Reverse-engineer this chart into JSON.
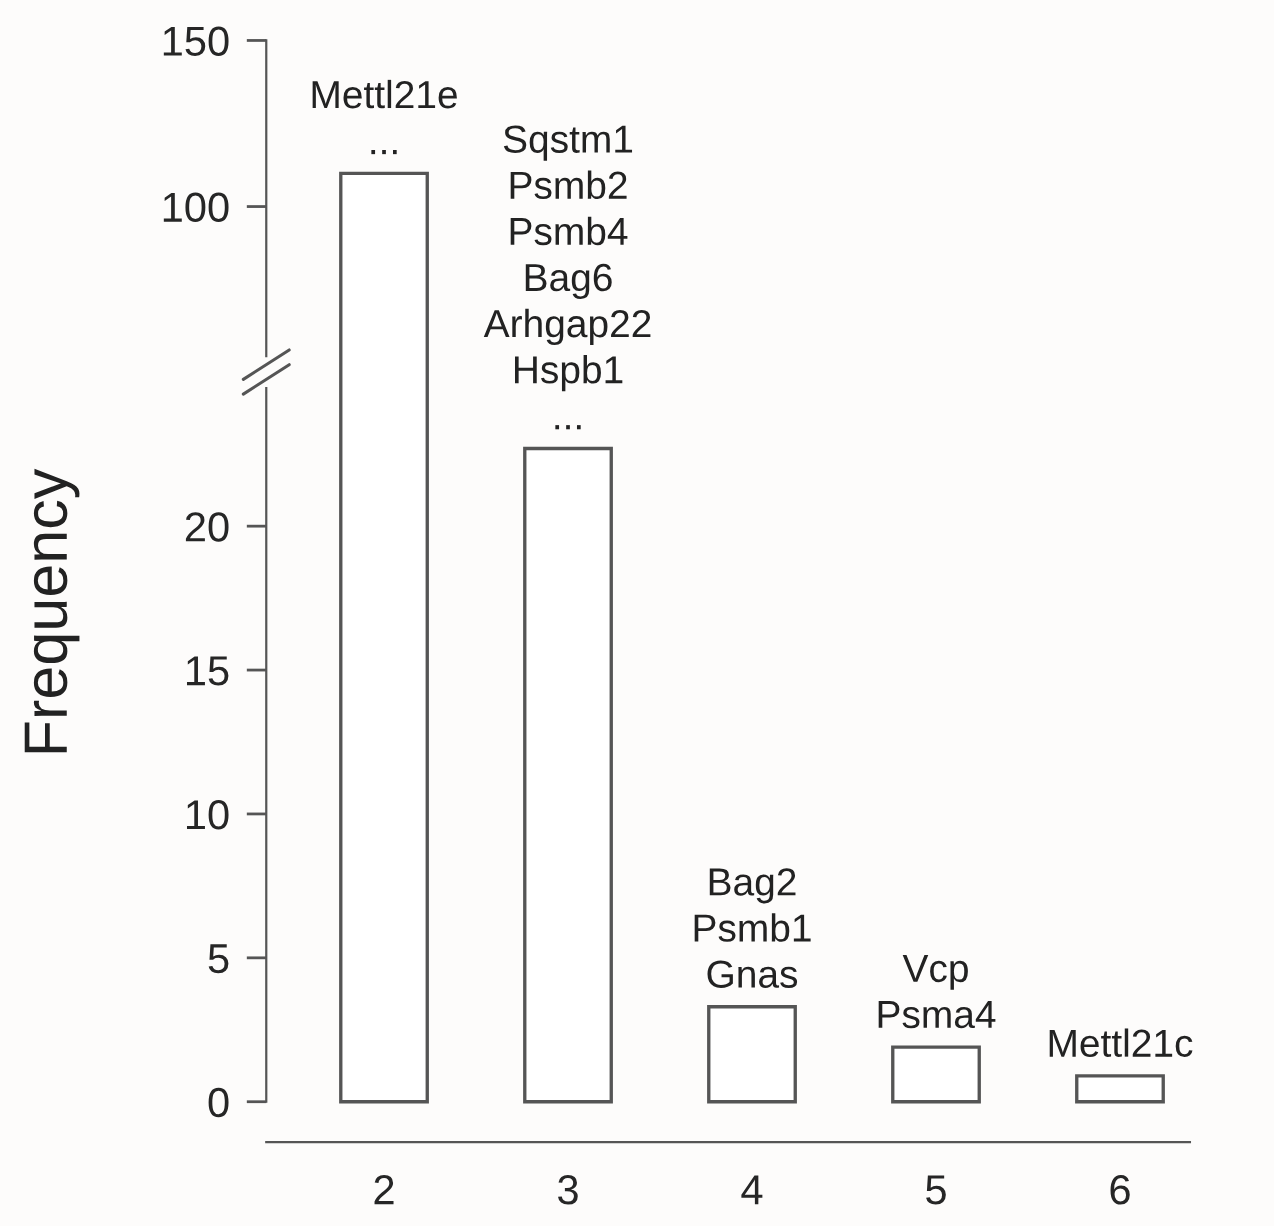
{
  "chart_data": [
    {
      "type": "bar",
      "categories": [
        "2",
        "3",
        "4",
        "5",
        "6"
      ],
      "values": [
        110,
        null,
        null,
        null,
        null
      ],
      "color": "#ffffff",
      "ylim": [
        55,
        150
      ],
      "yticks": [
        100,
        150
      ],
      "tick_labels": "y",
      "annotations": [
        {
          "text": "Mettl21e\n...",
          "x": "2",
          "y": 110
        }
      ]
    },
    {
      "type": "bar",
      "categories": [
        "2",
        "3",
        "4",
        "5",
        "6"
      ],
      "values": [
        null,
        22.7,
        3.3,
        1.9,
        0.9
      ],
      "color": "#ffffff",
      "ylim": [
        -1.4,
        24.8
      ],
      "yticks": [
        0,
        5,
        10,
        15,
        20
      ],
      "ylabel": "Frequency",
      "annotations": [
        {
          "text": "Sqstm1\nPsmb2\nPsmb4\nBag6\nArhgap22\nHspb1\n...",
          "x": "3",
          "y": 22.7
        },
        {
          "text": "Bag2\nPsmb1\nGnas",
          "x": "4",
          "y": 3.3
        },
        {
          "text": "Vcp\nPsma4",
          "x": "5",
          "y": 1.9
        },
        {
          "text": "Mettl21c",
          "x": "6",
          "y": 0.9
        }
      ]
    }
  ]
}
